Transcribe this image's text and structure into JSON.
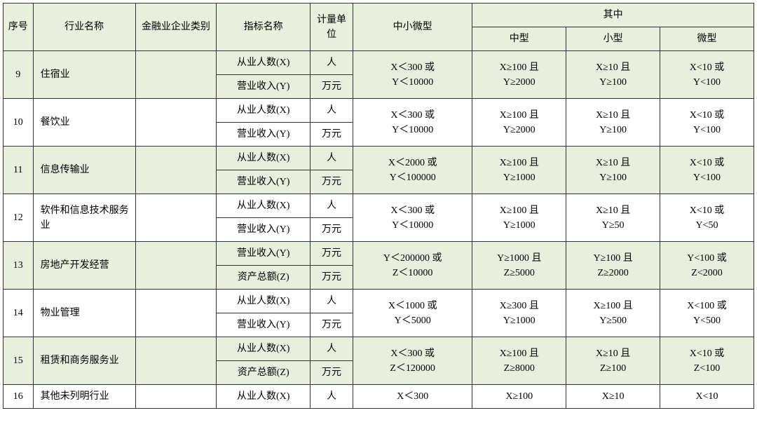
{
  "headers": {
    "seq": "序号",
    "industry": "行业名称",
    "finance_cat": "金融业企业类别",
    "metric": "指标名称",
    "unit": "计量单位",
    "sme": "中小微型",
    "sub_group": "其中",
    "medium": "中型",
    "small": "小型",
    "micro": "微型"
  },
  "metrics": {
    "employees": "从业人数(X)",
    "revenue": "营业收入(Y)",
    "assets": "资产总额(Z)"
  },
  "units": {
    "person": "人",
    "wan": "万元"
  },
  "rows": {
    "r9": {
      "seq": "9",
      "industry": "住宿业",
      "m1": "employees",
      "u1": "person",
      "m2": "revenue",
      "u2": "wan",
      "sme_l1": "X＜300 或",
      "sme_l2": "Y＜10000",
      "med_l1": "X≥100 且",
      "med_l2": "Y≥2000",
      "sm_l1": "X≥10 且",
      "sm_l2": "Y≥100",
      "mi_l1": "X<10 或",
      "mi_l2": "Y<100"
    },
    "r10": {
      "seq": "10",
      "industry": "餐饮业",
      "m1": "employees",
      "u1": "person",
      "m2": "revenue",
      "u2": "wan",
      "sme_l1": "X＜300 或",
      "sme_l2": "Y＜10000",
      "med_l1": "X≥100 且",
      "med_l2": "Y≥2000",
      "sm_l1": "X≥10 且",
      "sm_l2": "Y≥100",
      "mi_l1": "X<10 或",
      "mi_l2": "Y<100"
    },
    "r11": {
      "seq": "11",
      "industry": "信息传输业",
      "m1": "employees",
      "u1": "person",
      "m2": "revenue",
      "u2": "wan",
      "sme_l1": "X＜2000 或",
      "sme_l2": "Y＜100000",
      "med_l1": "X≥100 且",
      "med_l2": "Y≥1000",
      "sm_l1": "X≥10 且",
      "sm_l2": "Y≥100",
      "mi_l1": "X<10 或",
      "mi_l2": "Y<100"
    },
    "r12": {
      "seq": "12",
      "industry": "软件和信息技术服务业",
      "m1": "employees",
      "u1": "person",
      "m2": "revenue",
      "u2": "wan",
      "sme_l1": "X＜300 或",
      "sme_l2": "Y＜10000",
      "med_l1": "X≥100 且",
      "med_l2": "Y≥1000",
      "sm_l1": "X≥10 且",
      "sm_l2": "Y≥50",
      "mi_l1": "X<10 或",
      "mi_l2": "Y<50"
    },
    "r13": {
      "seq": "13",
      "industry": "房地产开发经营",
      "m1": "revenue",
      "u1": "wan",
      "m2": "assets",
      "u2": "wan",
      "sme_l1": "Y＜200000 或",
      "sme_l2": "Z＜10000",
      "med_l1": "Y≥1000 且",
      "med_l2": "Z≥5000",
      "sm_l1": "Y≥100 且",
      "sm_l2": "Z≥2000",
      "mi_l1": "Y<100 或",
      "mi_l2": "Z<2000"
    },
    "r14": {
      "seq": "14",
      "industry": "物业管理",
      "m1": "employees",
      "u1": "person",
      "m2": "revenue",
      "u2": "wan",
      "sme_l1": "X＜1000 或",
      "sme_l2": "Y＜5000",
      "med_l1": "X≥300 且",
      "med_l2": "Y≥1000",
      "sm_l1": "X≥100 且",
      "sm_l2": "Y≥500",
      "mi_l1": "X<100 或",
      "mi_l2": "Y<500"
    },
    "r15": {
      "seq": "15",
      "industry": "租赁和商务服务业",
      "m1": "employees",
      "u1": "person",
      "m2": "assets",
      "u2": "wan",
      "sme_l1": "X＜300 或",
      "sme_l2": "Z＜120000",
      "med_l1": "X≥100 且",
      "med_l2": "Z≥8000",
      "sm_l1": "X≥10 且",
      "sm_l2": "Z≥100",
      "mi_l1": "X<10 或",
      "mi_l2": "Z<100"
    },
    "r16": {
      "seq": "16",
      "industry": "其他未列明行业",
      "m1": "employees",
      "u1": "person",
      "sme_l1": "X＜300",
      "med_l1": "X≥100",
      "sm_l1": "X≥10",
      "mi_l1": "X<10"
    }
  },
  "colors": {
    "green": "#e8efdc",
    "white": "#ffffff"
  }
}
